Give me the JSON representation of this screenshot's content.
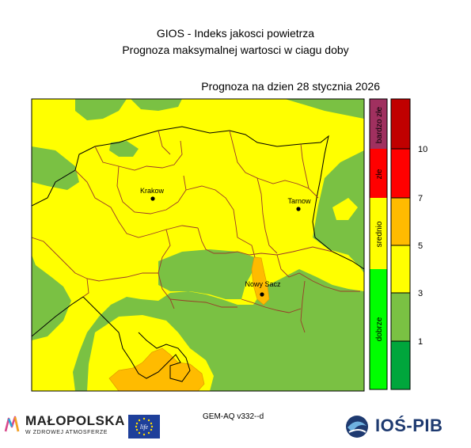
{
  "title_line1": "GIOS - Indeks jakosci powietrza",
  "title_line2": "Prognoza maksymalnej wartosci w ciagu doby",
  "forecast_date": "Prognoza na dzien  28 stycznia 2026",
  "cities": [
    {
      "name": "Krakow"
    },
    {
      "name": "Tarnow"
    },
    {
      "name": "Nowy Sacz"
    }
  ],
  "category_bar": [
    {
      "label": "bardzo złe",
      "color": "#a0305f"
    },
    {
      "label": "złe",
      "color": "#ff0000"
    },
    {
      "label": "srednio",
      "color": "#ffff00"
    },
    {
      "label": "dobrze",
      "color": "#00ff00"
    }
  ],
  "index_scale": {
    "levels": [
      {
        "color": "#00a63c"
      },
      {
        "color": "#7ac143"
      },
      {
        "color": "#ffff00"
      },
      {
        "color": "#ffbb00"
      },
      {
        "color": "#ff0000"
      },
      {
        "color": "#c00000"
      }
    ],
    "tick_labels": [
      "10",
      "7",
      "5",
      "3",
      "1"
    ]
  },
  "model_version": "GEM-AQ v332--d",
  "logos": {
    "malopolska_name": "MAŁOPOLSKA",
    "malopolska_tagline": "W ZDROWEJ ATMOSFERZE",
    "ios_name": "IOŚ-PIB"
  },
  "colors": {
    "green": "#7ac143",
    "yellow": "#ffff00",
    "orange": "#ffbb00",
    "border_brown": "#9a3a2a",
    "border_black": "#000000"
  }
}
